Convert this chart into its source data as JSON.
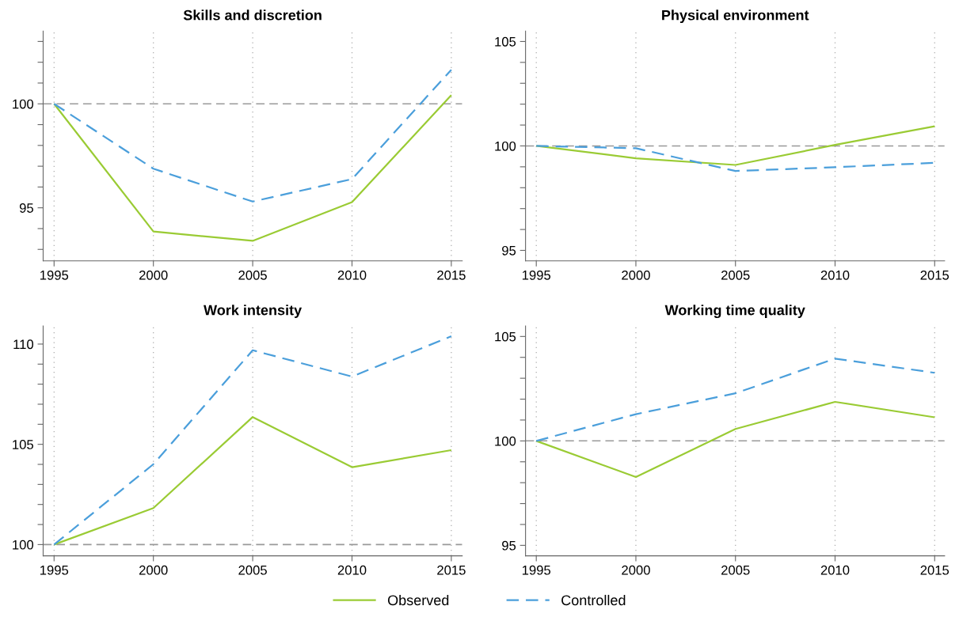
{
  "chart_data": [
    {
      "type": "line",
      "title": "Skills and discretion",
      "x": [
        1995,
        2000,
        2005,
        2010,
        2015
      ],
      "xlim": [
        1994.45,
        2015.55
      ],
      "xticks": [
        1995,
        2000,
        2005,
        2010,
        2015
      ],
      "ylim": [
        92.45,
        103.5
      ],
      "yticks": [
        {
          "value": 93,
          "label": null
        },
        {
          "value": 94,
          "label": null
        },
        95,
        {
          "value": 96,
          "label": null
        },
        {
          "value": 97,
          "label": null
        },
        {
          "value": 98,
          "label": null
        },
        {
          "value": 99,
          "label": null
        },
        100,
        {
          "value": 101,
          "label": null
        },
        {
          "value": 102,
          "label": null
        },
        {
          "value": 103,
          "label": null
        }
      ],
      "grid": "x",
      "legend": "bottom",
      "ref_lines": [
        {
          "axis": "y",
          "value": 100,
          "color": "#999999",
          "line_style": "dashed"
        }
      ],
      "series": [
        {
          "name": "Observed",
          "color": "#9acb34",
          "line_style": "solid",
          "values": [
            100,
            93.86,
            93.41,
            95.27,
            100.42
          ]
        },
        {
          "name": "Controlled",
          "color": "#4b9fdb",
          "line_style": "dashed",
          "values": [
            100,
            96.88,
            95.3,
            96.38,
            101.64
          ]
        }
      ]
    },
    {
      "type": "line",
      "title": "Physical environment",
      "x": [
        1995,
        2000,
        2005,
        2010,
        2015
      ],
      "xlim": [
        1994.46,
        2015.5
      ],
      "xticks": [
        1995,
        2000,
        2005,
        2010,
        2015
      ],
      "ylim": [
        94.5,
        105.5
      ],
      "yticks": [
        95,
        {
          "value": 96,
          "label": null
        },
        {
          "value": 97,
          "label": null
        },
        {
          "value": 98,
          "label": null
        },
        {
          "value": 99,
          "label": null
        },
        100,
        {
          "value": 101,
          "label": null
        },
        {
          "value": 102,
          "label": null
        },
        {
          "value": 103,
          "label": null
        },
        {
          "value": 104,
          "label": null
        },
        105
      ],
      "grid": "x",
      "ref_lines": [
        {
          "axis": "y",
          "value": 100,
          "color": "#999999",
          "line_style": "dashed"
        }
      ],
      "series": [
        {
          "color": "#9acb34",
          "line_style": "solid",
          "values": [
            100,
            99.41,
            99.09,
            100.05,
            100.94
          ]
        },
        {
          "color": "#4b9fdb",
          "line_style": "dashed",
          "values": [
            100,
            99.89,
            98.8,
            98.98,
            99.19
          ]
        }
      ]
    },
    {
      "type": "line",
      "title": "Work intensity",
      "x": [
        1995,
        2000,
        2005,
        2010,
        2015
      ],
      "xlim": [
        1994.45,
        2015.55
      ],
      "xticks": [
        1995,
        2000,
        2005,
        2010,
        2015
      ],
      "ylim": [
        99.44,
        110.9
      ],
      "yticks": [
        100,
        {
          "value": 101,
          "label": null
        },
        {
          "value": 102,
          "label": null
        },
        {
          "value": 103,
          "label": null
        },
        {
          "value": 104,
          "label": null
        },
        105,
        {
          "value": 106,
          "label": null
        },
        {
          "value": 107,
          "label": null
        },
        {
          "value": 108,
          "label": null
        },
        {
          "value": 109,
          "label": null
        },
        110
      ],
      "grid": "x",
      "ref_lines": [
        {
          "axis": "y",
          "value": 100,
          "color": "#999999",
          "line_style": "dashed"
        }
      ],
      "series": [
        {
          "color": "#9acb34",
          "line_style": "solid",
          "values": [
            100,
            101.82,
            106.36,
            103.86,
            104.71
          ]
        },
        {
          "color": "#4b9fdb",
          "line_style": "dashed",
          "values": [
            100,
            104.01,
            109.69,
            108.38,
            110.39
          ]
        }
      ]
    },
    {
      "type": "line",
      "title": "Working time quality",
      "x": [
        1995,
        2000,
        2005,
        2010,
        2015
      ],
      "xlim": [
        1994.46,
        2015.5
      ],
      "xticks": [
        1995,
        2000,
        2005,
        2010,
        2015
      ],
      "ylim": [
        94.5,
        105.5
      ],
      "yticks": [
        95,
        {
          "value": 96,
          "label": null
        },
        {
          "value": 97,
          "label": null
        },
        {
          "value": 98,
          "label": null
        },
        {
          "value": 99,
          "label": null
        },
        100,
        {
          "value": 101,
          "label": null
        },
        {
          "value": 102,
          "label": null
        },
        {
          "value": 103,
          "label": null
        },
        {
          "value": 104,
          "label": null
        },
        105
      ],
      "grid": "x",
      "ref_lines": [
        {
          "axis": "y",
          "value": 100,
          "color": "#999999",
          "line_style": "dashed"
        }
      ],
      "series": [
        {
          "color": "#9acb34",
          "line_style": "solid",
          "values": [
            100,
            98.27,
            100.57,
            101.87,
            101.13
          ]
        },
        {
          "color": "#4b9fdb",
          "line_style": "dashed",
          "values": [
            100,
            101.28,
            102.28,
            103.94,
            103.26
          ]
        }
      ]
    }
  ]
}
